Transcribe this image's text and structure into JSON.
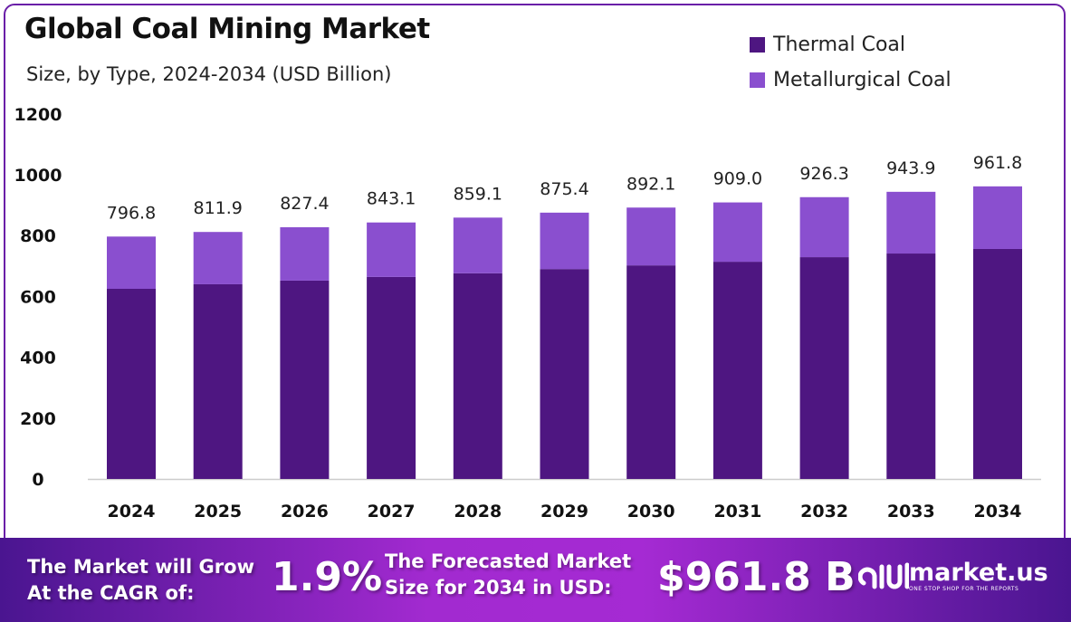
{
  "chart_data": {
    "type": "bar",
    "stacked": true,
    "title": "Global Coal Mining Market",
    "subtitle": "Size, by Type, 2024-2034 (USD Billion)",
    "xlabel": "",
    "ylabel": "",
    "ylim": [
      0,
      1200
    ],
    "yticks": [
      "0",
      "200",
      "400",
      "600",
      "800",
      "1000",
      "1200"
    ],
    "categories": [
      "2024",
      "2025",
      "2026",
      "2027",
      "2028",
      "2029",
      "2030",
      "2031",
      "2032",
      "2033",
      "2034"
    ],
    "series": [
      {
        "name": "Thermal Coal",
        "color": "#4e1681",
        "values": [
          625,
          640,
          652,
          664,
          676,
          690,
          702,
          714,
          729,
          741,
          756
        ]
      },
      {
        "name": "Metallurgical Coal",
        "color": "#8a4fcf",
        "values": [
          171.8,
          171.9,
          175.4,
          179.1,
          183.1,
          185.4,
          190.1,
          195.0,
          197.3,
          202.9,
          205.8
        ]
      }
    ],
    "totals": [
      "796.8",
      "811.9",
      "827.4",
      "843.1",
      "859.1",
      "875.4",
      "892.1",
      "909.0",
      "926.3",
      "943.9",
      "961.8"
    ],
    "grid": false,
    "legend_position": "top-right"
  },
  "footer": {
    "cagr_label_1": "The Market will Grow",
    "cagr_label_2": "At the CAGR of:",
    "cagr_value": "1.9%",
    "forecast_label_1": "The Forecasted Market",
    "forecast_label_2": "Size for 2034 in USD:",
    "forecast_value": "$961.8 B",
    "brand_name": "market.us",
    "brand_tagline": "ONE STOP SHOP FOR THE REPORTS"
  }
}
